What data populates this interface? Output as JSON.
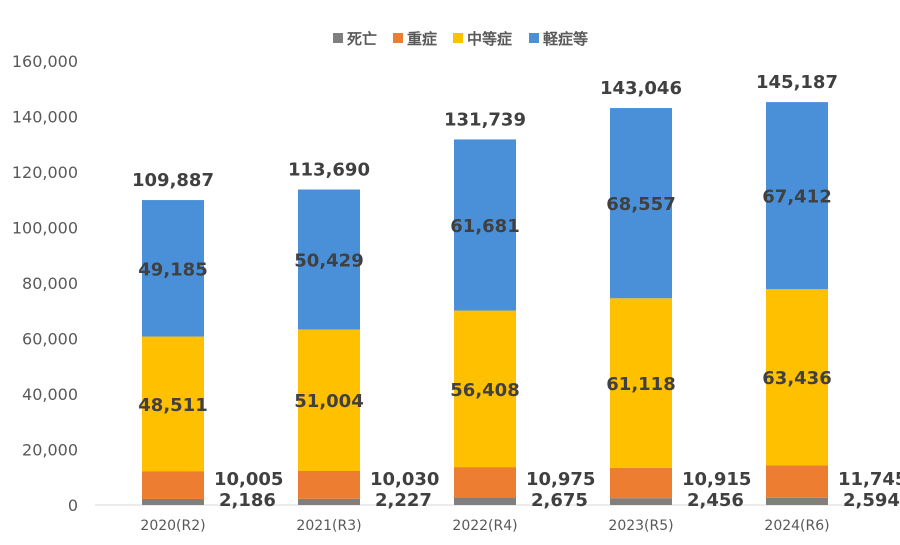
{
  "chart_data": {
    "type": "bar",
    "stacked": true,
    "categories": [
      "2020(R2)",
      "2021(R3)",
      "2022(R4)",
      "2023(R5)",
      "2024(R6)"
    ],
    "series": [
      {
        "name": "死亡",
        "color": "#7f7f7f",
        "values": [
          2186,
          2227,
          2675,
          2456,
          2594
        ],
        "labels": [
          "2,186",
          "2,227",
          "2,675",
          "2,456",
          "2,594"
        ]
      },
      {
        "name": "重症",
        "color": "#ed7d31",
        "values": [
          10005,
          10030,
          10975,
          10915,
          11745
        ],
        "labels": [
          "10,005",
          "10,030",
          "10,975",
          "10,915",
          "11,745"
        ]
      },
      {
        "name": "中等症",
        "color": "#ffc000",
        "values": [
          48511,
          51004,
          56408,
          61118,
          63436
        ],
        "labels": [
          "48,511",
          "51,004",
          "56,408",
          "61,118",
          "63,436"
        ]
      },
      {
        "name": "軽症等",
        "color": "#4a90d9",
        "values": [
          49185,
          50429,
          61681,
          68557,
          67412
        ],
        "labels": [
          "49,185",
          "50,429",
          "61,681",
          "68,557",
          "67,412"
        ]
      }
    ],
    "totals": [
      "109,887",
      "113,690",
      "131,739",
      "143,046",
      "145,187"
    ],
    "ylim": [
      0,
      160000
    ],
    "yticks": [
      "0",
      "20,000",
      "40,000",
      "60,000",
      "80,000",
      "100,000",
      "120,000",
      "140,000",
      "160,000"
    ],
    "grid": false,
    "legend": "top"
  }
}
